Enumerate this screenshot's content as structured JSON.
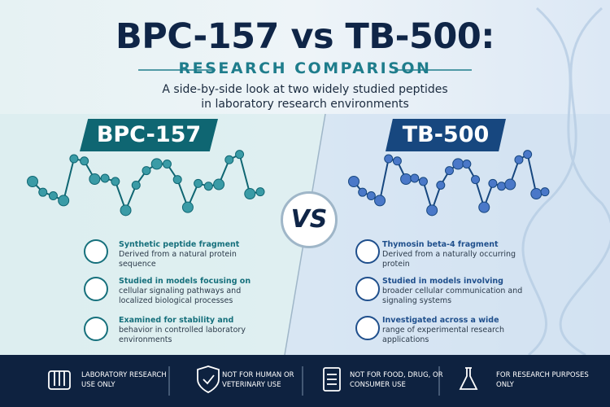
{
  "header": {
    "title": "BPC-157 vs TB-500:",
    "subtitle": "RESEARCH COMPARISON",
    "description": "A side-by-side look at two widely studied peptides in laboratory research environments"
  },
  "vs": "VS",
  "left": {
    "label": "BPC-157",
    "items": [
      {
        "title": "Synthetic peptide fragment",
        "body": "Derived from a natural protein sequence"
      },
      {
        "title": "Studied in models focusing on",
        "body": "cellular signaling pathways and localized biological processes"
      },
      {
        "title": "Examined for stability and",
        "body": "behavior in controlled laboratory environments"
      }
    ]
  },
  "right": {
    "label": "TB-500",
    "items": [
      {
        "title": "Thymosin beta-4 fragment",
        "body": "Derived from a naturally occurring protein"
      },
      {
        "title": "Studied in models involving",
        "body": "broader cellular communication and signaling systems"
      },
      {
        "title": "Investigated across a wide",
        "body": "range of experimental research applications"
      }
    ]
  },
  "footer": [
    "LABORATORY RESEARCH USE ONLY",
    "NOT FOR HUMAN OR VETERINARY USE",
    "NOT FOR FOOD, DRUG, OR CONSUMER USE",
    "FOR RESEARCH PURPOSES ONLY"
  ]
}
